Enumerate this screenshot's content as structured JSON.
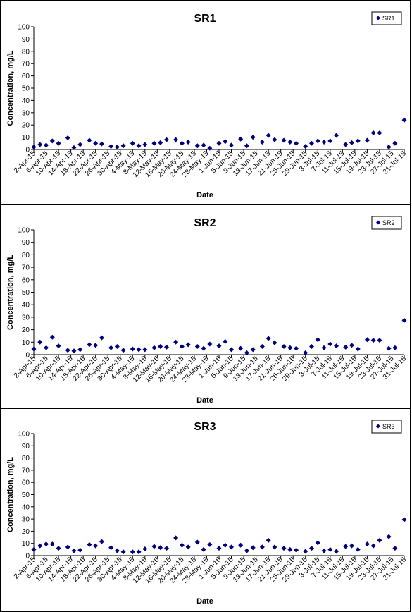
{
  "colors": {
    "marker": "#000080",
    "axis": "#000000",
    "background": "#ffffff"
  },
  "xlabel": "Date",
  "ylabel": "Concentration, mg/L",
  "ylim": [
    0,
    100
  ],
  "yticks": [
    0,
    10,
    20,
    30,
    40,
    50,
    60,
    70,
    80,
    90,
    100
  ],
  "xtick_labels": [
    "2-Apr-15",
    "6-Apr-15",
    "10-Apr-15",
    "14-Apr-15",
    "18-Apr-15",
    "22-Apr-15",
    "26-Apr-15",
    "30-Apr-15",
    "4-May-15",
    "8-May-15",
    "12-May-15",
    "16-May-15",
    "20-May-15",
    "24-May-15",
    "28-May-15",
    "1-Jun-15",
    "5-Jun-15",
    "9-Jun-15",
    "13-Jun-15",
    "17-Jun-15",
    "21-Jun-15",
    "25-Jun-15",
    "29-Jun-15",
    "3-Jul-15",
    "7-Jul-15",
    "11-Jul-15",
    "15-Jul-15",
    "19-Jul-15",
    "23-Jul-15",
    "27-Jul-15",
    "31-Jul-15"
  ],
  "chart_data": [
    {
      "type": "scatter",
      "title": "SR1",
      "legend": {
        "entries": [
          "SR1"
        ],
        "position": "top-right"
      },
      "series": [
        {
          "name": "SR1",
          "x": [
            "2-Apr-15",
            "4-Apr-15",
            "6-Apr-15",
            "8-Apr-15",
            "10-Apr-15",
            "13-Apr-15",
            "15-Apr-15",
            "17-Apr-15",
            "20-Apr-15",
            "22-Apr-15",
            "24-Apr-15",
            "27-Apr-15",
            "29-Apr-15",
            "1-May-15",
            "4-May-15",
            "6-May-15",
            "8-May-15",
            "11-May-15",
            "13-May-15",
            "15-May-15",
            "18-May-15",
            "20-May-15",
            "22-May-15",
            "25-May-15",
            "27-May-15",
            "29-May-15",
            "1-Jun-15",
            "3-Jun-15",
            "5-Jun-15",
            "8-Jun-15",
            "10-Jun-15",
            "12-Jun-15",
            "15-Jun-15",
            "17-Jun-15",
            "19-Jun-15",
            "22-Jun-15",
            "24-Jun-15",
            "26-Jun-15",
            "29-Jun-15",
            "1-Jul-15",
            "3-Jul-15",
            "5-Jul-15",
            "7-Jul-15",
            "9-Jul-15",
            "12-Jul-15",
            "14-Jul-15",
            "16-Jul-15",
            "19-Jul-15",
            "21-Jul-15",
            "23-Jul-15",
            "26-Jul-15",
            "28-Jul-15",
            "31-Jul-15"
          ],
          "y": [
            2,
            4,
            3.5,
            7,
            5,
            9.5,
            1.5,
            4,
            7.5,
            5,
            4.5,
            2.5,
            2,
            3,
            5,
            3,
            4,
            5,
            5.5,
            8,
            8,
            5,
            6,
            3,
            3.5,
            1,
            5,
            6.5,
            3.5,
            8.5,
            3,
            10,
            6,
            11.5,
            8,
            7.5,
            6,
            5,
            2.5,
            5,
            7,
            6,
            7,
            11.5,
            4,
            5.5,
            7,
            7.5,
            13.5,
            13.5,
            2,
            5,
            24
          ]
        }
      ]
    },
    {
      "type": "scatter",
      "title": "SR2",
      "legend": {
        "entries": [
          "SR2"
        ],
        "position": "top-right"
      },
      "series": [
        {
          "name": "SR2",
          "x": [
            "2-Apr-15",
            "4-Apr-15",
            "6-Apr-15",
            "8-Apr-15",
            "10-Apr-15",
            "13-Apr-15",
            "15-Apr-15",
            "17-Apr-15",
            "20-Apr-15",
            "22-Apr-15",
            "24-Apr-15",
            "27-Apr-15",
            "29-Apr-15",
            "1-May-15",
            "4-May-15",
            "6-May-15",
            "8-May-15",
            "11-May-15",
            "13-May-15",
            "15-May-15",
            "18-May-15",
            "20-May-15",
            "22-May-15",
            "25-May-15",
            "27-May-15",
            "29-May-15",
            "1-Jun-15",
            "3-Jun-15",
            "5-Jun-15",
            "8-Jun-15",
            "10-Jun-15",
            "12-Jun-15",
            "15-Jun-15",
            "17-Jun-15",
            "19-Jun-15",
            "22-Jun-15",
            "24-Jun-15",
            "26-Jun-15",
            "29-Jun-15",
            "1-Jul-15",
            "3-Jul-15",
            "5-Jul-15",
            "7-Jul-15",
            "9-Jul-15",
            "12-Jul-15",
            "14-Jul-15",
            "16-Jul-15",
            "19-Jul-15",
            "21-Jul-15",
            "23-Jul-15",
            "26-Jul-15",
            "28-Jul-15",
            "31-Jul-15"
          ],
          "y": [
            4.5,
            10,
            5.5,
            14,
            7,
            3.5,
            3,
            4,
            8,
            7.5,
            13.5,
            5.5,
            6.5,
            3.5,
            4.5,
            4,
            4,
            5.5,
            6.5,
            6,
            10,
            6.5,
            8,
            6.5,
            5,
            8.5,
            7,
            10.5,
            4,
            5,
            1.5,
            4,
            6.5,
            13,
            9.5,
            6.5,
            5.5,
            5,
            1.5,
            6.5,
            12,
            5.5,
            8.5,
            7,
            6,
            7.5,
            4.5,
            12,
            11.5,
            11.5,
            5,
            5.5,
            27.5
          ]
        }
      ]
    },
    {
      "type": "scatter",
      "title": "SR3",
      "legend": {
        "entries": [
          "SR3"
        ],
        "position": "top-right"
      },
      "series": [
        {
          "name": "SR3",
          "x": [
            "2-Apr-15",
            "4-Apr-15",
            "6-Apr-15",
            "8-Apr-15",
            "10-Apr-15",
            "13-Apr-15",
            "15-Apr-15",
            "17-Apr-15",
            "20-Apr-15",
            "22-Apr-15",
            "24-Apr-15",
            "27-Apr-15",
            "29-Apr-15",
            "1-May-15",
            "4-May-15",
            "6-May-15",
            "8-May-15",
            "11-May-15",
            "13-May-15",
            "15-May-15",
            "18-May-15",
            "20-May-15",
            "22-May-15",
            "25-May-15",
            "27-May-15",
            "29-May-15",
            "1-Jun-15",
            "3-Jun-15",
            "5-Jun-15",
            "8-Jun-15",
            "10-Jun-15",
            "12-Jun-15",
            "15-Jun-15",
            "17-Jun-15",
            "19-Jun-15",
            "22-Jun-15",
            "24-Jun-15",
            "26-Jun-15",
            "29-Jun-15",
            "1-Jul-15",
            "3-Jul-15",
            "5-Jul-15",
            "7-Jul-15",
            "9-Jul-15",
            "12-Jul-15",
            "14-Jul-15",
            "16-Jul-15",
            "19-Jul-15",
            "21-Jul-15",
            "23-Jul-15",
            "26-Jul-15",
            "28-Jul-15",
            "31-Jul-15"
          ],
          "y": [
            5,
            8,
            9.5,
            9.5,
            6,
            7,
            4,
            4.5,
            9,
            8,
            11.5,
            6.5,
            4,
            3,
            3,
            3,
            5.5,
            7.5,
            6.5,
            6,
            14.5,
            8.5,
            7,
            11,
            5,
            9,
            6,
            8.5,
            7,
            8.5,
            4,
            6.5,
            7,
            12.5,
            7,
            6,
            5,
            4.5,
            3.5,
            6,
            10.5,
            4,
            5,
            3.5,
            7.5,
            8,
            5,
            9.5,
            8,
            12.5,
            15.5,
            6,
            29.5
          ]
        }
      ]
    }
  ]
}
